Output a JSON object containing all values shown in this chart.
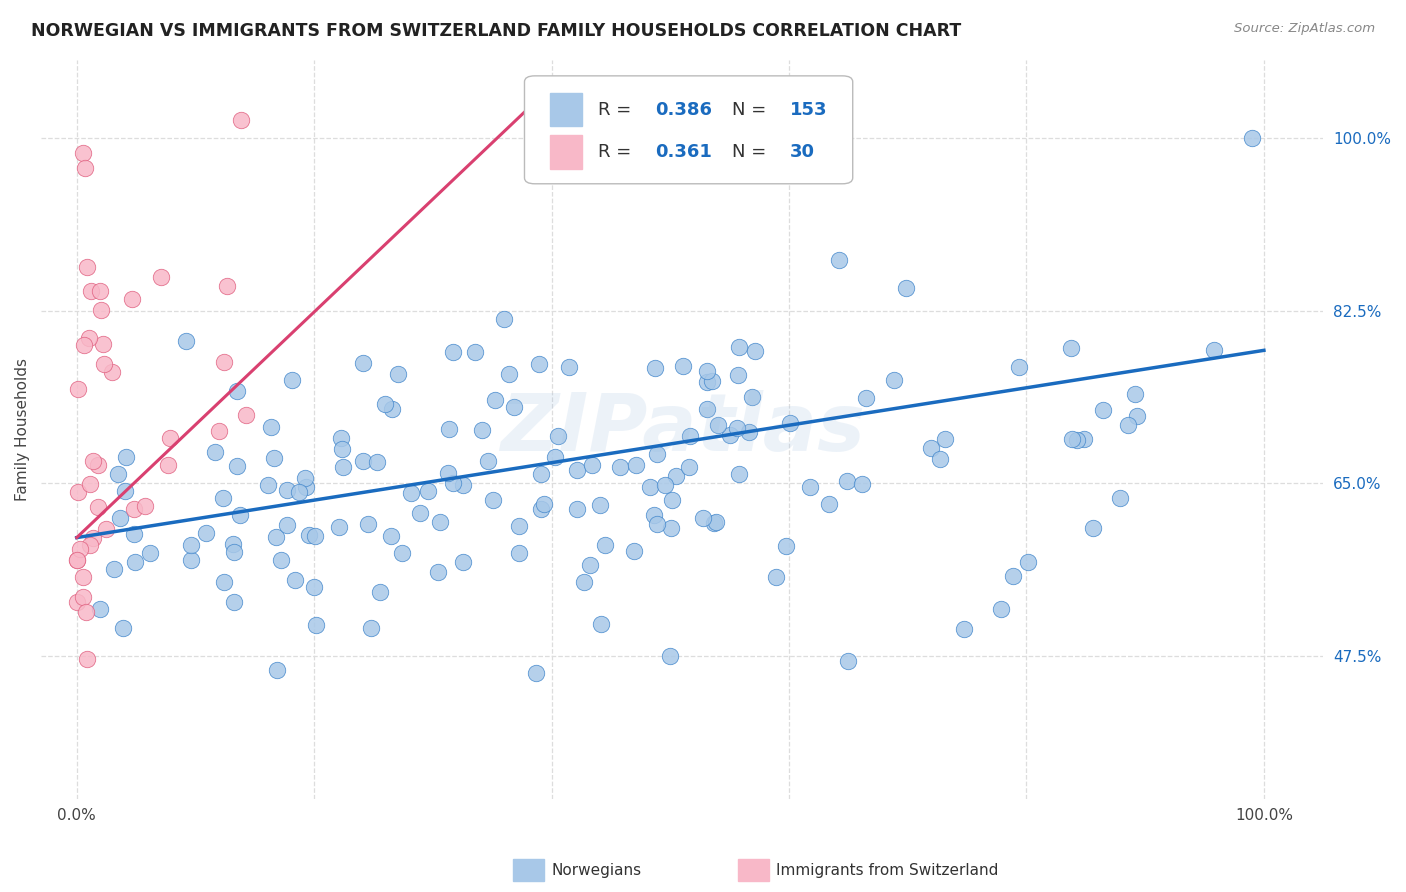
{
  "title": "NORWEGIAN VS IMMIGRANTS FROM SWITZERLAND FAMILY HOUSEHOLDS CORRELATION CHART",
  "source": "Source: ZipAtlas.com",
  "ylabel": "Family Households",
  "watermark": "ZIPatlas",
  "blue_color": "#a8c8e8",
  "blue_edge_color": "#4488cc",
  "pink_color": "#f8b8c8",
  "pink_edge_color": "#e06080",
  "blue_line_color": "#1a6bbf",
  "pink_line_color": "#d94070",
  "y_ticks": [
    0.475,
    0.65,
    0.825,
    1.0
  ],
  "y_tick_labels": [
    "47.5%",
    "65.0%",
    "82.5%",
    "100.0%"
  ],
  "x_ticks": [
    0.0,
    0.2,
    0.4,
    0.6,
    0.8,
    1.0
  ],
  "x_tick_labels": [
    "0.0%",
    "",
    "",
    "",
    "",
    "100.0%"
  ],
  "xlim": [
    -0.03,
    1.05
  ],
  "ylim": [
    0.33,
    1.08
  ],
  "blue_trendline": [
    0.0,
    1.0,
    0.595,
    0.785
  ],
  "pink_trendline": [
    0.0,
    0.38,
    0.595,
    1.03
  ],
  "legend_r1_val": "0.386",
  "legend_n1_val": "153",
  "legend_r2_val": "0.361",
  "legend_n2_val": "30",
  "title_color": "#222222",
  "source_color": "#888888",
  "tick_color": "#1a6bbf",
  "grid_color": "#dddddd",
  "bottom_legend_label1": "Norwegians",
  "bottom_legend_label2": "Immigrants from Switzerland"
}
